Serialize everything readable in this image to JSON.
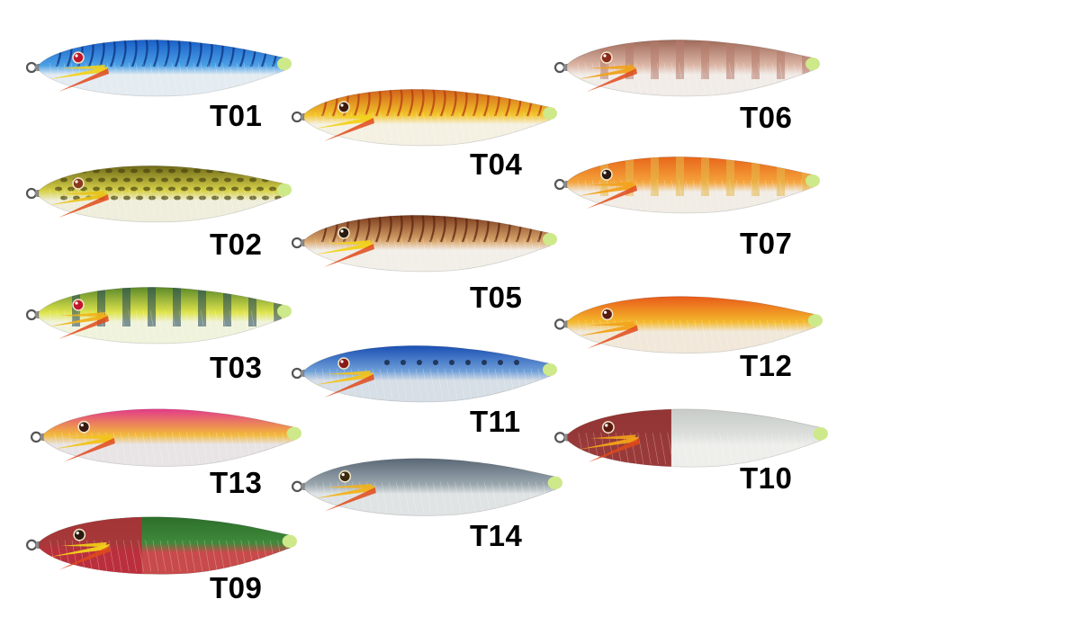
{
  "lures": [
    {
      "code": "T01",
      "top": "#1a5fc8",
      "mid": "#4aa0e6",
      "belly": "#e4ecf2",
      "pattern": "stripes",
      "patternColor": "#0b2f7a",
      "tail": "#cde98a",
      "fins": "#f2d21a",
      "eye": "#c0172d"
    },
    {
      "code": "T02",
      "top": "#6f6a18",
      "mid": "#d8d24a",
      "belly": "#efeedc",
      "pattern": "spots",
      "patternColor": "#4a4410",
      "tail": "#cde98a",
      "fins": "#e8c21a",
      "eye": "#8a3a1a"
    },
    {
      "code": "T03",
      "top": "#5d8a2a",
      "mid": "#dfe44c",
      "belly": "#f0f3dc",
      "pattern": "bars",
      "patternColor": "#20465a",
      "tail": "#cde98a",
      "fins": "#f0b21a",
      "eye": "#c0172d"
    },
    {
      "code": "T04",
      "top": "#d1621a",
      "mid": "#f2c42a",
      "belly": "#f5f1e2",
      "pattern": "stripes",
      "patternColor": "#b43a12",
      "tail": "#cde98a",
      "fins": "#f2d21a",
      "eye": "#3a1a10"
    },
    {
      "code": "T05",
      "top": "#7a3a1c",
      "mid": "#d8a46a",
      "belly": "#f2eee8",
      "pattern": "stripes",
      "patternColor": "#5a2410",
      "tail": "#cde98a",
      "fins": "#f2d21a",
      "eye": "#2a1a10"
    },
    {
      "code": "T06",
      "top": "#a06a5a",
      "mid": "#dcb6a6",
      "belly": "#f1ece8",
      "pattern": "bars",
      "patternColor": "#b47a6a",
      "tail": "#cde98a",
      "fins": "#f0a21a",
      "eye": "#8a2a1a"
    },
    {
      "code": "T07",
      "top": "#e8661a",
      "mid": "#f4a33a",
      "belly": "#f1ece4",
      "pattern": "bars",
      "patternColor": "#e6b84a",
      "tail": "#cde98a",
      "fins": "#f2a21a",
      "eye": "#2a1a10"
    },
    {
      "code": "T09",
      "top": "#2c6e2a",
      "mid": "#3f8a3a",
      "belly": "#c84a4a",
      "pattern": "split",
      "patternColor": "#b82a3a",
      "tail": "#cde98a",
      "fins": "#f2d21a",
      "eye": "#2a1a10"
    },
    {
      "code": "T10",
      "top": "#c7ccc8",
      "mid": "#dcdfdc",
      "belly": "#eeeeea",
      "pattern": "split",
      "patternColor": "#8a1a1a",
      "tail": "#cde98a",
      "fins": "#f2a21a",
      "eye": "#5a1a10"
    },
    {
      "code": "T11",
      "top": "#1a4fb4",
      "mid": "#6f9fd8",
      "belly": "#d6dee6",
      "pattern": "dots",
      "patternColor": "#1a2a4a",
      "tail": "#cde98a",
      "fins": "#f2c21a",
      "eye": "#8a1a1a"
    },
    {
      "code": "T12",
      "top": "#e85a1a",
      "mid": "#f4b82a",
      "belly": "#f1e8da",
      "pattern": "none",
      "patternColor": "#5a3a2a",
      "tail": "#cde98a",
      "fins": "#f2a21a",
      "eye": "#5a1a10"
    },
    {
      "code": "T13",
      "top": "#e23a8a",
      "mid": "#f2b83a",
      "belly": "#e8e4e6",
      "pattern": "none",
      "patternColor": "#4a2a2a",
      "tail": "#cde98a",
      "fins": "#f2c21a",
      "eye": "#3a1a10"
    },
    {
      "code": "T14",
      "top": "#5a6876",
      "mid": "#9aa6ae",
      "belly": "#dfe3e4",
      "pattern": "none",
      "patternColor": "#3a4652",
      "tail": "#cde98a",
      "fins": "#f2b21a",
      "eye": "#3a2a10"
    }
  ]
}
